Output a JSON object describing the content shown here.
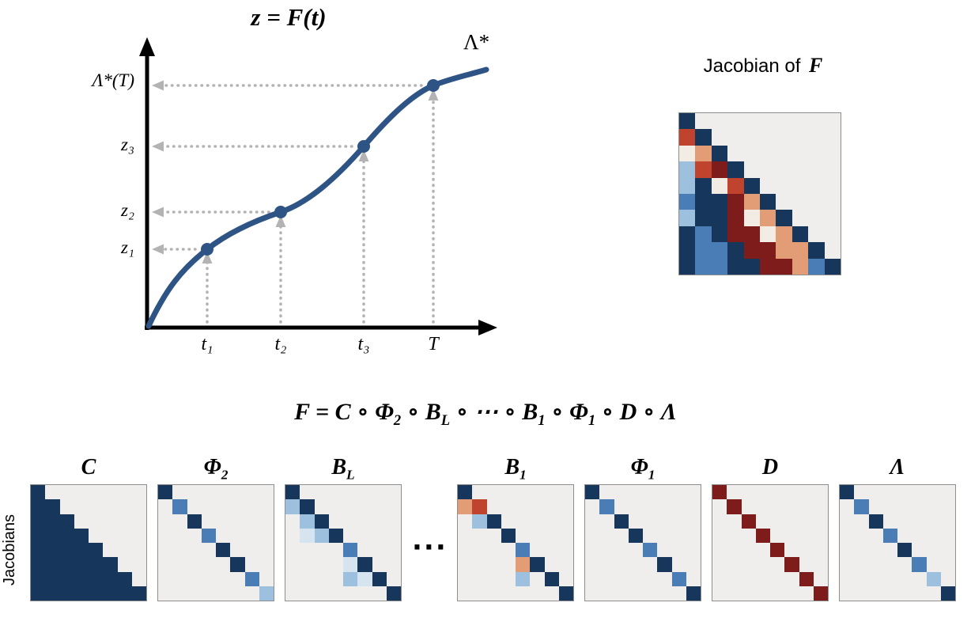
{
  "plot": {
    "title": "z = F(t)",
    "curve_label": "Λ*",
    "y_labels": [
      "Λ*(T)",
      "z₃",
      "z₂",
      "z₁"
    ],
    "x_labels": [
      "t₁",
      "t₂",
      "t₃",
      "T"
    ],
    "curve_color": "#2e5486",
    "point_color": "#2e5486",
    "arrow_color": "#b3b3b3"
  },
  "jacobian_panel": {
    "title_prefix": "Jacobian of",
    "title_var": "F",
    "grid": [
      "N.........",
      "rN........",
      "woN.......",
      "lrRN......",
      "lNwrN.....",
      "bNNRoN....",
      "lNNRwoN...",
      "NbNRRwoN..",
      "NbbNRRooN.",
      "NbbNNRRobN"
    ]
  },
  "equation": {
    "lhs": "F",
    "equals": "=",
    "operator": "∘",
    "terms": [
      {
        "base": "C"
      },
      {
        "base": "Φ",
        "sub": "2"
      },
      {
        "base": "B",
        "sub": "L"
      },
      {
        "dots": "⋯"
      },
      {
        "base": "B",
        "sub": "1"
      },
      {
        "base": "Φ",
        "sub": "1"
      },
      {
        "base": "D"
      },
      {
        "base": "Λ"
      }
    ]
  },
  "bottom": {
    "side_label": "Jacobians",
    "dots": "···",
    "items": [
      {
        "label": {
          "base": "C"
        },
        "grid": [
          "N.......",
          "NN......",
          "NNN.....",
          "NNNN....",
          "NNNNN...",
          "NNNNNN..",
          "NNNNNNN.",
          "NNNNNNNN"
        ]
      },
      {
        "label": {
          "base": "Φ",
          "sub": "2"
        },
        "grid": [
          "N.......",
          ".b......",
          "..N.....",
          "...b....",
          "....N...",
          ".....N..",
          "......b.",
          ".......l"
        ]
      },
      {
        "label": {
          "base": "B",
          "sub": "L"
        },
        "grid": [
          "N.......",
          "lN......",
          ".lN.....",
          ".plN....",
          "....b...",
          "....pN..",
          "....lpN.",
          ".......N"
        ]
      },
      {
        "type": "dots"
      },
      {
        "label": {
          "base": "B",
          "sub": "1"
        },
        "grid": [
          "N.......",
          "or......",
          ".lN.....",
          "...N....",
          "....b...",
          "....oN..",
          "....l.N.",
          ".......N"
        ]
      },
      {
        "label": {
          "base": "Φ",
          "sub": "1"
        },
        "grid": [
          "N.......",
          ".b......",
          "..N.....",
          "...N....",
          "....b...",
          ".....N..",
          "......b.",
          ".......N"
        ]
      },
      {
        "label": {
          "base": "D"
        },
        "grid": [
          "R.......",
          ".R......",
          "..R.....",
          "...R....",
          "....R...",
          ".....R..",
          "......R.",
          ".......R"
        ]
      },
      {
        "label": {
          "base": "Λ"
        },
        "grid": [
          "N.......",
          ".b......",
          "..N.....",
          "...b....",
          "....N...",
          ".....b..",
          "......l.",
          ".......N"
        ]
      }
    ]
  },
  "palette": {
    "N": "#16365c",
    "b": "#4a7db5",
    "l": "#9dc0de",
    "p": "#d6e4f0",
    "w": "#f2ece4",
    "o": "#e29c76",
    "r": "#c0432e",
    "R": "#7e1c1c",
    ".": "transparent"
  }
}
